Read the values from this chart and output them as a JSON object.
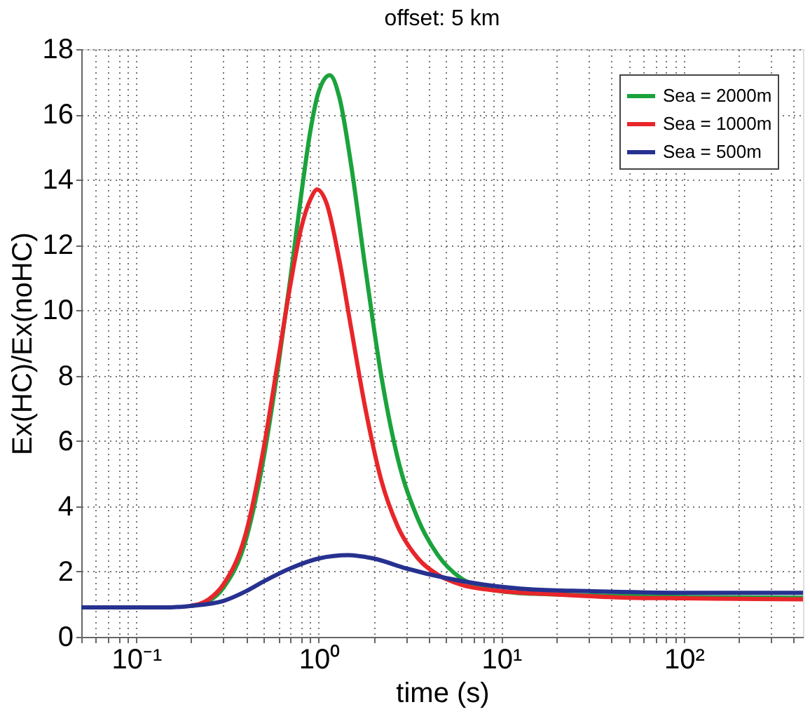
{
  "chart_data": {
    "type": "line",
    "title": "offset: 5 km",
    "xlabel": "time (s)",
    "ylabel": "Ex(HC)/Ex(noHC)",
    "log": "x",
    "xlim": [
      0.05,
      450
    ],
    "ylim": [
      0,
      18
    ],
    "xticks": [
      {
        "value": 0.05,
        "label": null
      },
      {
        "value": 0.06,
        "label": null
      },
      {
        "value": 0.07,
        "label": null
      },
      {
        "value": 0.08,
        "label": null
      },
      {
        "value": 0.09,
        "label": null
      },
      {
        "value": 0.1,
        "label": "10⁻¹"
      },
      {
        "value": 0.2,
        "label": null
      },
      {
        "value": 0.3,
        "label": null
      },
      {
        "value": 0.4,
        "label": null
      },
      {
        "value": 0.5,
        "label": null
      },
      {
        "value": 0.6,
        "label": null
      },
      {
        "value": 0.7,
        "label": null
      },
      {
        "value": 0.8,
        "label": null
      },
      {
        "value": 0.9,
        "label": null
      },
      {
        "value": 1,
        "label": "10⁰"
      },
      {
        "value": 2,
        "label": null
      },
      {
        "value": 3,
        "label": null
      },
      {
        "value": 4,
        "label": null
      },
      {
        "value": 5,
        "label": null
      },
      {
        "value": 6,
        "label": null
      },
      {
        "value": 7,
        "label": null
      },
      {
        "value": 8,
        "label": null
      },
      {
        "value": 9,
        "label": null
      },
      {
        "value": 10,
        "label": "10¹"
      },
      {
        "value": 20,
        "label": null
      },
      {
        "value": 30,
        "label": null
      },
      {
        "value": 40,
        "label": null
      },
      {
        "value": 50,
        "label": null
      },
      {
        "value": 60,
        "label": null
      },
      {
        "value": 70,
        "label": null
      },
      {
        "value": 80,
        "label": null
      },
      {
        "value": 90,
        "label": null
      },
      {
        "value": 100,
        "label": "10²"
      },
      {
        "value": 200,
        "label": null
      },
      {
        "value": 300,
        "label": null
      },
      {
        "value": 400,
        "label": null
      }
    ],
    "yticks": [
      0,
      2,
      4,
      6,
      8,
      10,
      12,
      14,
      16,
      18
    ],
    "grid": true,
    "legend": "top right",
    "line_style": "solid",
    "series": [
      {
        "name": "Sea = 2000m",
        "color": "#1aa33c",
        "x": [
          0.2,
          0.25,
          0.3,
          0.4,
          0.5,
          0.6,
          0.7,
          0.8,
          0.9,
          1.0,
          1.15,
          1.3,
          1.5,
          1.8,
          2.2,
          2.7,
          3.5,
          4.5,
          6,
          8,
          12,
          20,
          50,
          100,
          450
        ],
        "values": [
          0.95,
          1.1,
          1.5,
          3.0,
          5.5,
          8.3,
          11.0,
          13.5,
          15.5,
          16.7,
          17.2,
          16.5,
          14.5,
          11.3,
          8.0,
          5.5,
          3.6,
          2.5,
          1.8,
          1.5,
          1.35,
          1.3,
          1.25,
          1.22,
          1.2
        ]
      },
      {
        "name": "Sea = 1000m",
        "color": "#e8262a",
        "x": [
          0.2,
          0.25,
          0.3,
          0.4,
          0.5,
          0.6,
          0.7,
          0.8,
          0.9,
          0.98,
          1.1,
          1.3,
          1.5,
          1.8,
          2.2,
          2.7,
          3.5,
          4.5,
          6,
          10,
          20,
          50,
          100,
          450
        ],
        "values": [
          0.95,
          1.15,
          1.6,
          3.2,
          5.8,
          8.5,
          10.8,
          12.5,
          13.4,
          13.7,
          13.3,
          11.5,
          9.5,
          7.0,
          4.8,
          3.4,
          2.4,
          1.9,
          1.6,
          1.4,
          1.3,
          1.2,
          1.18,
          1.15
        ]
      },
      {
        "name": "Sea = 500m",
        "color": "#27318f",
        "x": [
          0.05,
          0.15,
          0.2,
          0.3,
          0.4,
          0.5,
          0.7,
          1.0,
          1.45,
          2,
          3,
          5,
          8,
          15,
          30,
          100,
          450
        ],
        "values": [
          0.9,
          0.9,
          0.95,
          1.1,
          1.4,
          1.7,
          2.1,
          2.4,
          2.5,
          2.4,
          2.1,
          1.8,
          1.6,
          1.45,
          1.4,
          1.35,
          1.35
        ]
      }
    ]
  }
}
